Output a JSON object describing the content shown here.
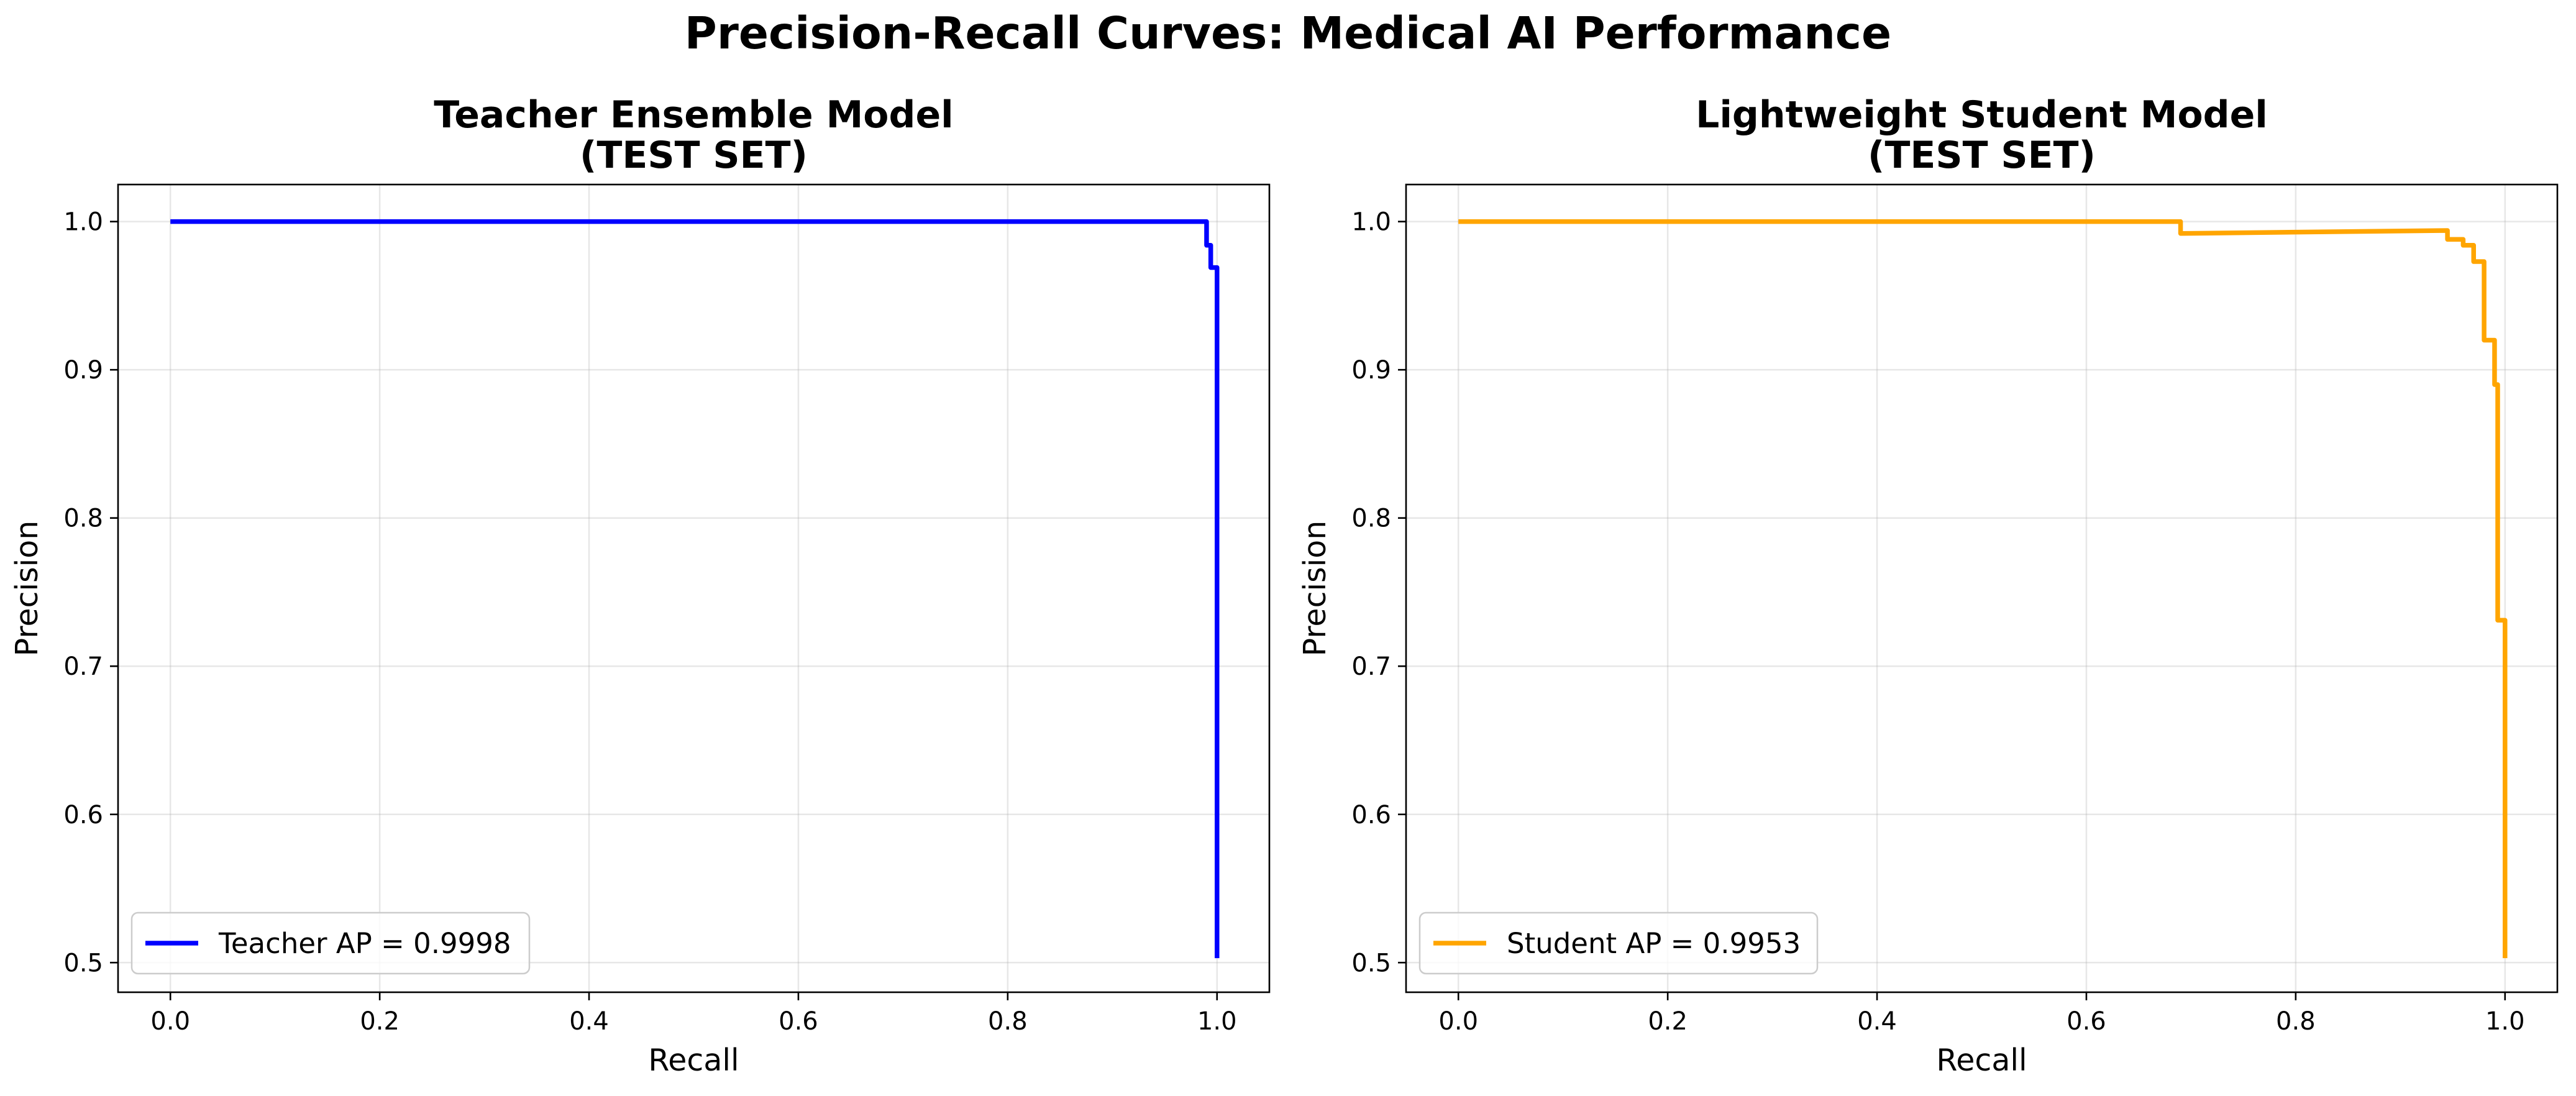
{
  "figure": {
    "suptitle": "Precision-Recall Curves: Medical AI Performance"
  },
  "chart_data": [
    {
      "type": "line",
      "title_line1": "Teacher Ensemble Model",
      "title_line2": "(TEST SET)",
      "xlabel": "Recall",
      "ylabel": "Precision",
      "xlim": [
        -0.05,
        1.05
      ],
      "ylim": [
        0.48,
        1.025
      ],
      "xticks": [
        0.0,
        0.2,
        0.4,
        0.6,
        0.8,
        1.0
      ],
      "xtick_labels": [
        "0.0",
        "0.2",
        "0.4",
        "0.6",
        "0.8",
        "1.0"
      ],
      "yticks": [
        0.5,
        0.6,
        0.7,
        0.8,
        0.9,
        1.0
      ],
      "ytick_labels": [
        "0.5",
        "0.6",
        "0.7",
        "0.8",
        "0.9",
        "1.0"
      ],
      "grid": true,
      "legend_position": "lower-left",
      "series": [
        {
          "name": "Teacher AP = 0.9998",
          "color": "#0000ff",
          "x": [
            0.0,
            0.99,
            0.99,
            0.994,
            0.994,
            1.0,
            1.0
          ],
          "y": [
            1.0,
            1.0,
            0.984,
            0.984,
            0.969,
            0.969,
            0.503
          ]
        }
      ]
    },
    {
      "type": "line",
      "title_line1": "Lightweight Student Model",
      "title_line2": "(TEST SET)",
      "xlabel": "Recall",
      "ylabel": "Precision",
      "xlim": [
        -0.05,
        1.05
      ],
      "ylim": [
        0.48,
        1.025
      ],
      "xticks": [
        0.0,
        0.2,
        0.4,
        0.6,
        0.8,
        1.0
      ],
      "xtick_labels": [
        "0.0",
        "0.2",
        "0.4",
        "0.6",
        "0.8",
        "1.0"
      ],
      "yticks": [
        0.5,
        0.6,
        0.7,
        0.8,
        0.9,
        1.0
      ],
      "ytick_labels": [
        "0.5",
        "0.6",
        "0.7",
        "0.8",
        "0.9",
        "1.0"
      ],
      "grid": true,
      "legend_position": "lower-left",
      "series": [
        {
          "name": "Student AP = 0.9953",
          "color": "#ffa500",
          "x": [
            0.0,
            0.69,
            0.69,
            0.945,
            0.945,
            0.96,
            0.96,
            0.97,
            0.97,
            0.98,
            0.98,
            0.99,
            0.99,
            0.993,
            0.993,
            0.997,
            0.997,
            1.0,
            1.0
          ],
          "y": [
            1.0,
            1.0,
            0.992,
            0.994,
            0.988,
            0.988,
            0.984,
            0.984,
            0.973,
            0.973,
            0.92,
            0.92,
            0.89,
            0.89,
            0.731,
            0.731,
            0.731,
            0.731,
            0.503
          ]
        }
      ]
    }
  ]
}
